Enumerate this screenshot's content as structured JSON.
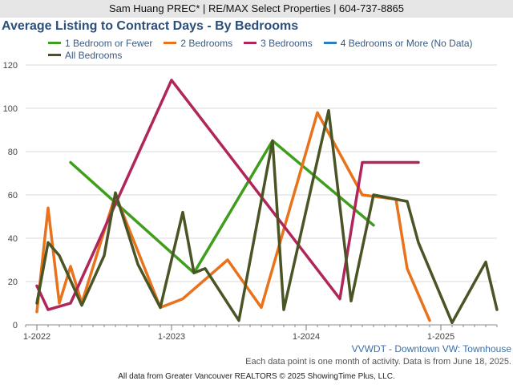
{
  "header": "Sam Huang PREC* | RE/MAX Select Properties | 604-737-8865",
  "subtitle": "VVWDT - Downtown VW: Townhouse",
  "note": "Each data point is one month of activity. Data is from June 18, 2025.",
  "footer": "All data from Greater Vancouver REALTORS © 2025 ShowingTime Plus, LLC.",
  "chart_data": {
    "type": "line",
    "title": "Average Listing to Contract Days - By Bedrooms",
    "xlabel": "",
    "ylabel": "",
    "x_range": [
      "2021-12",
      "2025-06"
    ],
    "ylim": [
      0,
      120
    ],
    "yticks": [
      0,
      20,
      40,
      60,
      80,
      100,
      120
    ],
    "xticks": [
      {
        "date": "2022-01",
        "label": "1-2022"
      },
      {
        "date": "2023-01",
        "label": "1-2023"
      },
      {
        "date": "2024-01",
        "label": "1-2024"
      },
      {
        "date": "2025-01",
        "label": "1-2025"
      }
    ],
    "grid": "horizontal",
    "legend": "top",
    "series": [
      {
        "name": "1 Bedroom or Fewer",
        "color": "#3f9e1d",
        "points": [
          [
            "2022-04",
            75
          ],
          [
            "2023-03",
            24
          ],
          [
            "2023-10",
            85
          ],
          [
            "2024-07",
            46
          ]
        ]
      },
      {
        "name": "2 Bedrooms",
        "color": "#e8731c",
        "points": [
          [
            "2022-01",
            6
          ],
          [
            "2022-02",
            54
          ],
          [
            "2022-03",
            10
          ],
          [
            "2022-04",
            27
          ],
          [
            "2022-05",
            10
          ],
          [
            "2022-08",
            60
          ],
          [
            "2022-12",
            8
          ],
          [
            "2023-02",
            12
          ],
          [
            "2023-06",
            30
          ],
          [
            "2023-09",
            8
          ],
          [
            "2024-02",
            98
          ],
          [
            "2024-06",
            60
          ],
          [
            "2024-09",
            58
          ],
          [
            "2024-10",
            26
          ],
          [
            "2024-12",
            2
          ]
        ]
      },
      {
        "name": "3 Bedrooms",
        "color": "#b0255a",
        "points": [
          [
            "2022-01",
            18
          ],
          [
            "2022-02",
            7
          ],
          [
            "2022-04",
            10
          ],
          [
            "2023-01",
            113
          ],
          [
            "2024-04",
            12
          ],
          [
            "2024-06",
            75
          ],
          [
            "2024-11",
            75
          ]
        ]
      },
      {
        "name": "4 Bedrooms or More (No Data)",
        "color": "#2b7fbf",
        "points": []
      },
      {
        "name": "All Bedrooms",
        "color": "#4a5526",
        "points": [
          [
            "2022-01",
            10
          ],
          [
            "2022-02",
            38
          ],
          [
            "2022-03",
            32
          ],
          [
            "2022-05",
            9
          ],
          [
            "2022-07",
            32
          ],
          [
            "2022-08",
            61
          ],
          [
            "2022-10",
            28
          ],
          [
            "2022-12",
            8
          ],
          [
            "2023-02",
            52
          ],
          [
            "2023-03",
            24
          ],
          [
            "2023-04",
            26
          ],
          [
            "2023-07",
            2
          ],
          [
            "2023-10",
            85
          ],
          [
            "2023-11",
            7
          ],
          [
            "2024-03",
            99
          ],
          [
            "2024-05",
            11
          ],
          [
            "2024-07",
            60
          ],
          [
            "2024-10",
            57
          ],
          [
            "2024-11",
            38
          ],
          [
            "2025-02",
            1
          ],
          [
            "2025-05",
            29
          ],
          [
            "2025-06",
            7
          ]
        ]
      }
    ]
  }
}
